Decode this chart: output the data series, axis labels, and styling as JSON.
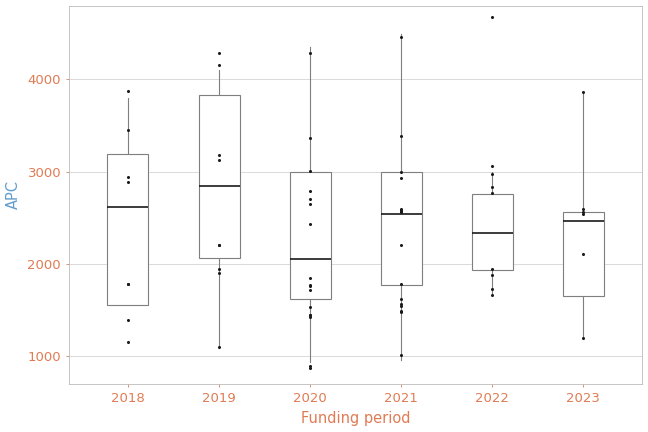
{
  "title": "",
  "xlabel": "Funding period",
  "ylabel": "APC",
  "xlabel_color": "#E07B54",
  "ylabel_color": "#619CCC",
  "tick_label_color": "#E07B54",
  "ytick_label_color": "#E07B54",
  "background_color": "#FFFFFF",
  "panel_background": "#FFFFFF",
  "grid_color": "#D9D9D9",
  "box_edge_color": "#7F7F7F",
  "median_color": "#1A1A1A",
  "flier_color": "#1A1A1A",
  "whisker_color": "#7F7F7F",
  "ylim": [
    700,
    4800
  ],
  "yticks": [
    1000,
    2000,
    3000,
    4000
  ],
  "categories": [
    "2018",
    "2019",
    "2020",
    "2021",
    "2022",
    "2023"
  ],
  "boxes": {
    "2018": {
      "q1": 1560,
      "median": 2620,
      "q3": 3190,
      "whislo": 1560,
      "whishi": 3800,
      "fliers": [
        3870,
        3450,
        2940,
        2890,
        1785,
        1780,
        1390,
        1150
      ]
    },
    "2019": {
      "q1": 2060,
      "median": 2840,
      "q3": 3830,
      "whislo": 1090,
      "whishi": 4100,
      "fliers": [
        4290,
        4155,
        3180,
        3130,
        2200,
        2200,
        1950,
        1900,
        1100
      ]
    },
    "2020": {
      "q1": 1620,
      "median": 2050,
      "q3": 3000,
      "whislo": 940,
      "whishi": 4350,
      "fliers": [
        4290,
        3360,
        3010,
        2790,
        2700,
        2650,
        2430,
        1850,
        1770,
        1760,
        1720,
        1530,
        1450,
        1450,
        1420,
        890,
        870
      ]
    },
    "2021": {
      "q1": 1770,
      "median": 2540,
      "q3": 3000,
      "whislo": 955,
      "whishi": 4490,
      "fliers": [
        4460,
        3390,
        3000,
        2930,
        2590,
        2580,
        2570,
        2560,
        2200,
        1785,
        1620,
        1570,
        1545,
        1490,
        1480,
        1010
      ]
    },
    "2022": {
      "q1": 1930,
      "median": 2340,
      "q3": 2760,
      "whislo": 1660,
      "whishi": 3000,
      "fliers": [
        4680,
        3060,
        2970,
        2830,
        2770,
        1950,
        1880,
        1730,
        1660
      ]
    },
    "2023": {
      "q1": 1650,
      "median": 2470,
      "q3": 2560,
      "whislo": 1190,
      "whishi": 3840,
      "fliers": [
        3860,
        2600,
        2560,
        2540,
        2110,
        1200
      ]
    }
  }
}
